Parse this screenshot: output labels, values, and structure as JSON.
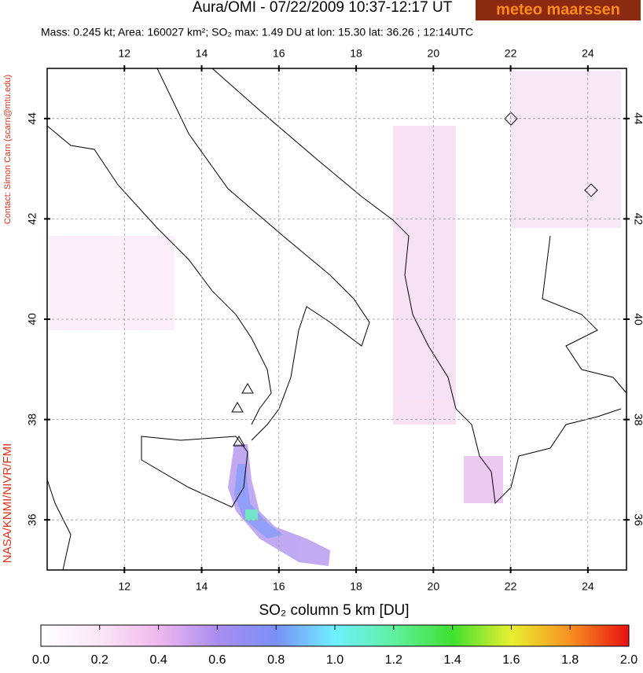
{
  "header": {
    "title": "Aura/OMI - 07/22/2009 10:37-12:17 UT",
    "subtitle": "Mass: 0.245 kt; Area: 160027 km²; SO₂ max: 1.49 DU at lon: 15.30 lat: 36.26 ; 12:14UTC",
    "logo": "meteo maarssen"
  },
  "credits": {
    "contact": "Contact: Simon Carn (scarn@mtu.edu)",
    "agencies": "NASA/KNMI/NIVR/FMI"
  },
  "map": {
    "xlim": [
      10,
      25
    ],
    "ylim": [
      35,
      45
    ],
    "xticks": [
      12,
      14,
      16,
      18,
      20,
      22,
      24
    ],
    "yticks": [
      36,
      38,
      40,
      42,
      44
    ]
  },
  "colorbar": {
    "label": "SO₂ column 5 km [DU]",
    "lim": [
      0,
      2
    ],
    "ticks": [
      {
        "value": 0,
        "label": "0.0"
      },
      0.2,
      0.4,
      0.6,
      0.8,
      {
        "value": 1,
        "label": "1.0"
      },
      1.2,
      1.4,
      1.6,
      1.8,
      {
        "value": 2,
        "label": "2.0"
      }
    ]
  }
}
